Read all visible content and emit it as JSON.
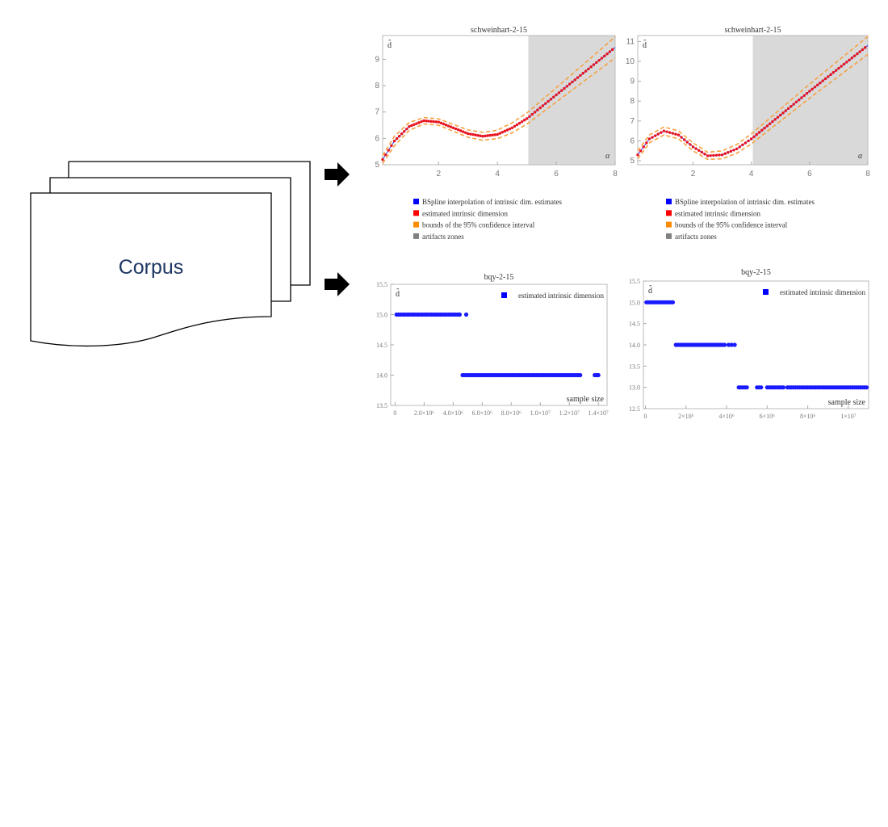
{
  "corpus": {
    "label": "Corpus",
    "text_color": "#1F3864"
  },
  "arrows": [
    {
      "icon": "right-arrow-icon"
    },
    {
      "icon": "right-arrow-icon"
    }
  ],
  "chart_data": [
    {
      "type": "line",
      "title": "schweinhart-2-15",
      "ylabel": "d̂",
      "xlabel": "α",
      "xlim": [
        0.1,
        8
      ],
      "ylim": [
        5,
        9.9
      ],
      "xticks": [
        2,
        4,
        6,
        8
      ],
      "yticks": [
        5,
        6,
        7,
        8,
        9
      ],
      "artifact_zone": [
        5.05,
        8
      ],
      "x": [
        0.1,
        0.5,
        1,
        1.5,
        2,
        2.5,
        3,
        3.5,
        4,
        4.5,
        5,
        6,
        7,
        8
      ],
      "series": [
        {
          "name": "estimated intrinsic dimension",
          "values": [
            5.2,
            5.9,
            6.45,
            6.67,
            6.62,
            6.4,
            6.18,
            6.08,
            6.15,
            6.4,
            6.75,
            7.65,
            8.55,
            9.45
          ]
        },
        {
          "name": "bounds of the 95% confidence interval",
          "lower": [
            5.05,
            5.72,
            6.3,
            6.55,
            6.5,
            6.27,
            6.04,
            5.93,
            5.99,
            6.21,
            6.54,
            7.38,
            8.22,
            9.05
          ],
          "upper": [
            5.35,
            6.08,
            6.6,
            6.79,
            6.74,
            6.53,
            6.32,
            6.23,
            6.31,
            6.59,
            6.96,
            7.92,
            8.88,
            9.85
          ]
        }
      ],
      "legend": [
        {
          "label": "BSpline interpolation of intrinsic dim. estimates",
          "color": "#0000FF"
        },
        {
          "label": "estimated intrinsic dimension",
          "color": "#FF0000"
        },
        {
          "label": "bounds of the 95% confidence interval",
          "color": "#FF8C00"
        },
        {
          "label": "artifacts zones",
          "color": "#808080"
        }
      ],
      "legend_position": "bottom"
    },
    {
      "type": "line",
      "title": "schweinhart-2-15",
      "ylabel": "d̂",
      "xlabel": "α",
      "xlim": [
        0.1,
        8
      ],
      "ylim": [
        4.8,
        11.3
      ],
      "xticks": [
        2,
        4,
        6,
        8
      ],
      "yticks": [
        5,
        6,
        7,
        8,
        9,
        10,
        11
      ],
      "artifact_zone": [
        4.05,
        8
      ],
      "x": [
        0.1,
        0.5,
        1,
        1.5,
        2,
        2.5,
        3,
        3.5,
        4,
        5,
        6,
        7,
        8
      ],
      "series": [
        {
          "name": "estimated intrinsic dimension",
          "values": [
            5.3,
            6.1,
            6.5,
            6.3,
            5.7,
            5.25,
            5.3,
            5.6,
            6.1,
            7.3,
            8.5,
            9.65,
            10.8
          ]
        },
        {
          "name": "bounds of the 95% confidence interval",
          "lower": [
            5.1,
            5.9,
            6.3,
            6.1,
            5.5,
            5.07,
            5.1,
            5.38,
            5.85,
            7.0,
            8.15,
            9.25,
            10.35
          ],
          "upper": [
            5.5,
            6.3,
            6.7,
            6.5,
            5.9,
            5.43,
            5.5,
            5.82,
            6.35,
            7.6,
            8.85,
            10.05,
            11.25
          ]
        }
      ],
      "legend": [
        {
          "label": "BSpline interpolation of intrinsic dim. estimates",
          "color": "#0000FF"
        },
        {
          "label": "estimated intrinsic dimension",
          "color": "#FF0000"
        },
        {
          "label": "bounds of the 95% confidence interval",
          "color": "#FF8C00"
        },
        {
          "label": "artifacts zones",
          "color": "#808080"
        }
      ],
      "legend_position": "bottom"
    },
    {
      "type": "scatter",
      "title": "bqy-2-15",
      "ylabel": "d̂",
      "xlabel": "sample size",
      "xlim": [
        -300000,
        14600000
      ],
      "ylim": [
        13.5,
        15.5
      ],
      "xticks": [
        {
          "v": 0,
          "label": "0"
        },
        {
          "v": 2000000,
          "label": "2.0×10⁶"
        },
        {
          "v": 4000000,
          "label": "4.0×10⁶"
        },
        {
          "v": 6000000,
          "label": "6.0×10⁶"
        },
        {
          "v": 8000000,
          "label": "8.0×10⁶"
        },
        {
          "v": 10000000,
          "label": "1.0×10⁷"
        },
        {
          "v": 12000000,
          "label": "1.2×10⁷"
        },
        {
          "v": 14000000,
          "label": "1.4×10⁷"
        }
      ],
      "yticks": [
        "13.5",
        "14.0",
        "14.5",
        "15.0",
        "15.5"
      ],
      "point_runs": [
        {
          "y": 15,
          "from": 100000,
          "to": 4550000,
          "step": 150000
        },
        {
          "y": 15,
          "from": 4900000,
          "to": 4900000,
          "step": 150000
        },
        {
          "y": 14,
          "from": 4650000,
          "to": 12750000,
          "step": 150000
        },
        {
          "y": 14,
          "from": 13750000,
          "to": 14000000,
          "step": 125000
        }
      ],
      "legend": [
        {
          "label": "estimated intrinsic dimension",
          "color": "#0000FF"
        }
      ],
      "legend_position": "top-right"
    },
    {
      "type": "scatter",
      "title": "bqy-2-15",
      "ylabel": "d̂",
      "xlabel": "sample size",
      "xlim": [
        -100000,
        11000000
      ],
      "ylim": [
        12.5,
        15.5
      ],
      "xticks": [
        {
          "v": 0,
          "label": "0"
        },
        {
          "v": 2000000,
          "label": "2×10⁶"
        },
        {
          "v": 4000000,
          "label": "4×10⁶"
        },
        {
          "v": 6000000,
          "label": "6×10⁶"
        },
        {
          "v": 8000000,
          "label": "8×10⁶"
        },
        {
          "v": 10000000,
          "label": "1×10⁷"
        }
      ],
      "yticks": [
        "12.5",
        "13.0",
        "13.5",
        "14.0",
        "14.5",
        "15.0",
        "15.5"
      ],
      "point_runs": [
        {
          "y": 15,
          "from": 50000,
          "to": 1400000,
          "step": 100000
        },
        {
          "y": 14,
          "from": 1500000,
          "to": 3900000,
          "step": 100000
        },
        {
          "y": 14,
          "from": 4100000,
          "to": 4400000,
          "step": 150000
        },
        {
          "y": 13,
          "from": 4600000,
          "to": 5050000,
          "step": 100000
        },
        {
          "y": 13,
          "from": 5500000,
          "to": 5700000,
          "step": 100000
        },
        {
          "y": 13,
          "from": 6000000,
          "to": 6800000,
          "step": 100000
        },
        {
          "y": 13,
          "from": 7000000,
          "to": 10900000,
          "step": 100000
        }
      ],
      "legend": [
        {
          "label": "estimated intrinsic dimension",
          "color": "#0000FF"
        }
      ],
      "legend_position": "top-right"
    }
  ]
}
